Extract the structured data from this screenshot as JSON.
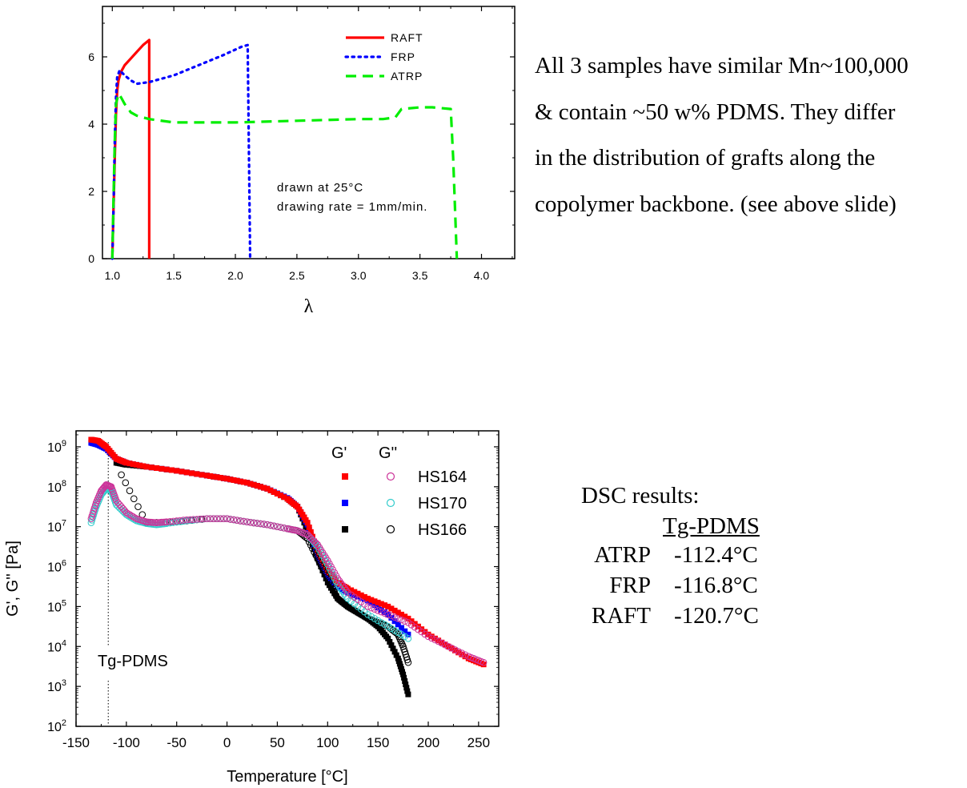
{
  "paragraph": {
    "lines": [
      "All 3 samples have similar Mn~100,000",
      "& contain ~50 w% PDMS.  They differ",
      "in the distribution of grafts along the",
      "copolymer backbone. (see above slide)"
    ]
  },
  "dsc": {
    "title": "DSC results:",
    "header": "Tg-PDMS",
    "rows": [
      {
        "name": "ATRP",
        "value": "-112.4°C"
      },
      {
        "name": "FRP",
        "value": "-116.8°C"
      },
      {
        "name": "RAFT",
        "value": "-120.7°C"
      }
    ]
  },
  "chart_data": [
    {
      "type": "line",
      "xlabel": "λ",
      "ylabel": "",
      "xlim": [
        0.92,
        4.27
      ],
      "ylim": [
        0,
        7.5
      ],
      "xticks": [
        "1.0",
        "1.5",
        "2.0",
        "2.5",
        "3.0",
        "3.5",
        "4.0"
      ],
      "yticks": [
        "0",
        "2",
        "4",
        "6"
      ],
      "annotations": [
        "drawn at 25°C",
        "drawing rate = 1mm/min."
      ],
      "legend_position": "top-right",
      "series": [
        {
          "name": "RAFT",
          "color": "#ff0000",
          "style": "solid",
          "x": [
            1.0,
            1.01,
            1.02,
            1.03,
            1.04,
            1.05,
            1.07,
            1.1,
            1.15,
            1.2,
            1.25,
            1.3,
            1.3
          ],
          "y": [
            0,
            1.5,
            3.0,
            4.3,
            5.0,
            5.3,
            5.55,
            5.75,
            5.95,
            6.15,
            6.35,
            6.5,
            0
          ]
        },
        {
          "name": "FRP",
          "color": "#0000ff",
          "style": "dotted",
          "x": [
            1.0,
            1.01,
            1.02,
            1.03,
            1.04,
            1.06,
            1.1,
            1.15,
            1.2,
            1.3,
            1.5,
            1.7,
            1.9,
            2.05,
            2.1,
            2.12
          ],
          "y": [
            0,
            1.5,
            3.5,
            4.8,
            5.4,
            5.6,
            5.45,
            5.3,
            5.2,
            5.25,
            5.45,
            5.75,
            6.05,
            6.3,
            6.35,
            0
          ]
        },
        {
          "name": "ATRP",
          "color": "#00ee00",
          "style": "dashed",
          "x": [
            1.0,
            1.01,
            1.02,
            1.03,
            1.05,
            1.07,
            1.1,
            1.15,
            1.2,
            1.3,
            1.5,
            2.0,
            2.5,
            3.0,
            3.2,
            3.3,
            3.35,
            3.5,
            3.6,
            3.75,
            3.77,
            3.8
          ],
          "y": [
            0,
            1.8,
            3.5,
            4.6,
            4.9,
            4.8,
            4.6,
            4.35,
            4.25,
            4.15,
            4.05,
            4.05,
            4.1,
            4.15,
            4.15,
            4.2,
            4.45,
            4.5,
            4.5,
            4.45,
            3.0,
            0
          ]
        }
      ]
    },
    {
      "type": "scatter",
      "xlabel": "Temperature [°C]",
      "ylabel": "G', G'' [Pa]",
      "xlim": [
        -150,
        270
      ],
      "ylim_log10": [
        2,
        9.4
      ],
      "yscale": "log",
      "xticks": [
        "-150",
        "-100",
        "-50",
        "0",
        "50",
        "100",
        "150",
        "200",
        "250"
      ],
      "yticks": [
        "10^2",
        "10^3",
        "10^4",
        "10^5",
        "10^6",
        "10^7",
        "10^8",
        "10^9"
      ],
      "annotations": [
        "Tg-PDMS"
      ],
      "reference_line_x": -118,
      "legend": {
        "header_1": "G'",
        "header_2": "G''",
        "samples": [
          "HS164",
          "HS170",
          "HS166"
        ]
      },
      "series": [
        {
          "name": "HS164",
          "modulus": "G'",
          "color": "#ff0000",
          "marker": "filled-square",
          "x": [
            -135,
            -128,
            -120,
            -110,
            -100,
            -80,
            -50,
            -20,
            0,
            20,
            40,
            60,
            70,
            80,
            90,
            100,
            110,
            120,
            140,
            160,
            180,
            200,
            220,
            240,
            255
          ],
          "log10_y": [
            9.18,
            9.15,
            9.0,
            8.7,
            8.6,
            8.5,
            8.4,
            8.28,
            8.2,
            8.1,
            7.95,
            7.7,
            7.5,
            7.1,
            6.4,
            5.9,
            5.6,
            5.45,
            5.2,
            5.0,
            4.7,
            4.3,
            4.0,
            3.7,
            3.55
          ]
        },
        {
          "name": "HS170",
          "modulus": "G'",
          "color": "#0000ff",
          "marker": "filled-square",
          "x": [
            -135,
            -128,
            -120,
            -110,
            -100,
            -80,
            -50,
            -20,
            0,
            20,
            40,
            60,
            70,
            80,
            90,
            100,
            110,
            120,
            140,
            160,
            180
          ],
          "log10_y": [
            9.1,
            9.05,
            8.95,
            8.7,
            8.6,
            8.5,
            8.4,
            8.28,
            8.2,
            8.1,
            7.95,
            7.72,
            7.5,
            7.05,
            6.3,
            5.8,
            5.5,
            5.35,
            5.15,
            4.8,
            4.3
          ]
        },
        {
          "name": "HS166",
          "modulus": "G'",
          "color": "#000000",
          "marker": "filled-square",
          "x": [
            -110,
            -100,
            -80,
            -50,
            -20,
            0,
            20,
            40,
            60,
            70,
            80,
            90,
            100,
            110,
            120,
            130,
            140,
            150,
            160,
            170,
            175,
            180
          ],
          "log10_y": [
            8.6,
            8.55,
            8.5,
            8.4,
            8.28,
            8.2,
            8.1,
            7.95,
            7.7,
            7.5,
            6.9,
            6.2,
            5.6,
            5.2,
            5.0,
            4.85,
            4.7,
            4.5,
            4.2,
            3.7,
            3.3,
            2.8
          ]
        },
        {
          "name": "HS164",
          "modulus": "G''",
          "color": "#cc3399",
          "marker": "open-circle",
          "x": [
            -135,
            -130,
            -125,
            -120,
            -115,
            -110,
            -100,
            -90,
            -80,
            -70,
            -60,
            -40,
            -20,
            0,
            20,
            40,
            60,
            70,
            80,
            90,
            100,
            110,
            120,
            140,
            160,
            180,
            200,
            220,
            240,
            255
          ],
          "log10_y": [
            7.2,
            7.6,
            7.9,
            8.05,
            8.0,
            7.65,
            7.35,
            7.2,
            7.12,
            7.1,
            7.12,
            7.17,
            7.2,
            7.2,
            7.12,
            7.05,
            6.95,
            6.9,
            6.8,
            6.55,
            6.15,
            5.7,
            5.35,
            5.0,
            4.8,
            4.6,
            4.25,
            4.0,
            3.75,
            3.6
          ]
        },
        {
          "name": "HS170",
          "modulus": "G''",
          "color": "#33cccc",
          "marker": "open-circle",
          "x": [
            -135,
            -130,
            -125,
            -120,
            -115,
            -110,
            -100,
            -90,
            -80,
            -70,
            -60,
            -40,
            -20,
            0,
            20,
            40,
            60,
            70,
            80,
            90,
            100,
            110,
            120,
            140,
            160,
            180
          ],
          "log10_y": [
            7.1,
            7.5,
            7.8,
            7.95,
            7.9,
            7.55,
            7.3,
            7.15,
            7.08,
            7.05,
            7.08,
            7.15,
            7.2,
            7.2,
            7.12,
            7.05,
            6.95,
            6.9,
            6.8,
            6.5,
            6.05,
            5.55,
            5.2,
            4.8,
            4.5,
            4.2
          ]
        },
        {
          "name": "HS166",
          "modulus": "G''",
          "color": "#000000",
          "marker": "open-circle",
          "x": [
            -105,
            -80,
            -50,
            -20,
            0,
            20,
            40,
            60,
            70,
            80,
            90,
            100,
            110,
            120,
            130,
            140,
            150,
            160,
            170,
            175,
            180
          ],
          "log10_y": [
            8.3,
            7.1,
            7.12,
            7.2,
            7.2,
            7.12,
            7.05,
            6.95,
            6.9,
            6.7,
            6.2,
            5.7,
            5.2,
            5.0,
            4.85,
            4.7,
            4.6,
            4.5,
            4.3,
            4.0,
            3.6
          ]
        }
      ]
    }
  ]
}
